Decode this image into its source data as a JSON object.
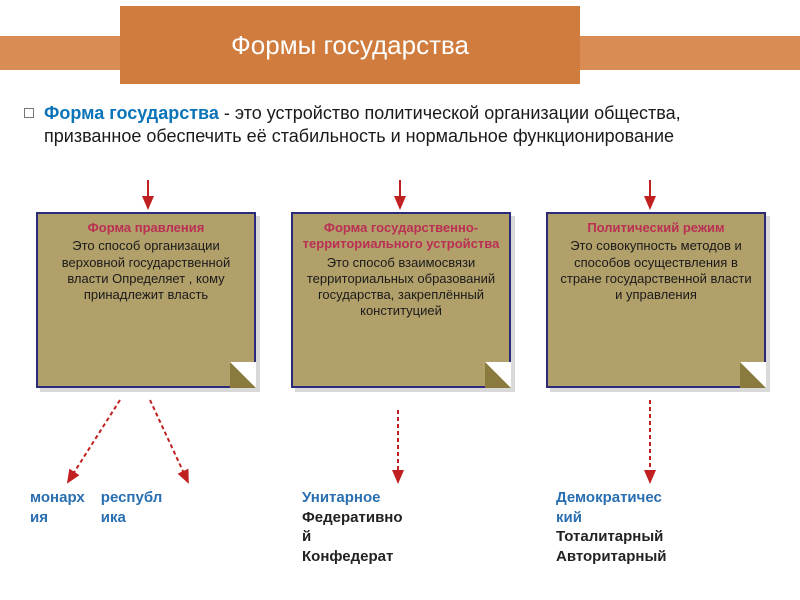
{
  "title": "Формы государства",
  "definition": {
    "term": "Форма государства",
    "rest": " - это устройство политической организации общества, призванное обеспечить её стабильность и нормальное функционирование"
  },
  "boxes": [
    {
      "title": "Форма правления",
      "body": "Это способ организации верховной государственной власти Определяет , кому принадлежит власть"
    },
    {
      "title": "Форма государственно-территориального устройства",
      "body": "Это способ взаимосвязи территориальных образований государства, закреплённый конституцией"
    },
    {
      "title": "Политический режим",
      "body": "Это совокупность методов и способов осуществления в стране государственной власти и управления"
    }
  ],
  "subs": {
    "col0": {
      "a": "монарх\nия",
      "b": "республ\nика"
    },
    "col1": [
      "Унитарное",
      "Федеративно\nй",
      "Конфедерат"
    ],
    "col2": [
      "Демократичес\nкий",
      "Тоталитарный",
      "Авторитарный"
    ]
  },
  "colors": {
    "title_bg": "#cf7c3e",
    "band_bg": "#d98c53",
    "paper_bg": "#b2a06a",
    "paper_border": "#2b2b7a",
    "box_title": "#b93054",
    "blue": "#2a6fb0",
    "arrow": "#c02020"
  }
}
